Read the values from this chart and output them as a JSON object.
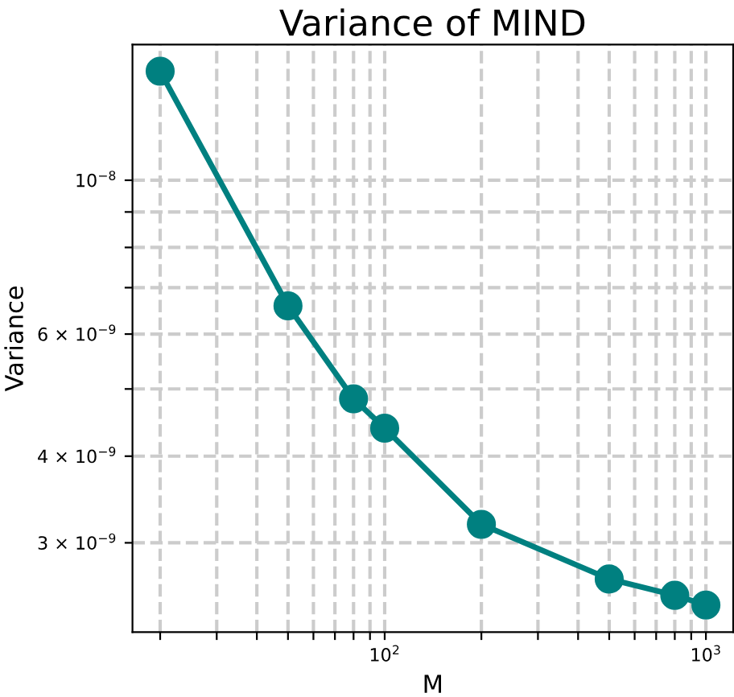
{
  "chart_data": {
    "type": "line",
    "title": "Variance of MIND",
    "xlabel": "M",
    "ylabel": "Variance",
    "log": "xy",
    "grid": true,
    "marker": "circle",
    "line_style": "solid",
    "x": [
      20,
      50,
      80,
      100,
      200,
      500,
      800,
      1000
    ],
    "series": [
      {
        "color": "#008080",
        "values": [
          1.436e-08,
          6.59e-09,
          4.84e-09,
          4.39e-09,
          3.19e-09,
          2.66e-09,
          2.52e-09,
          2.44e-09
        ]
      }
    ],
    "xlim": [
      16.4,
      1216
    ],
    "ylim": [
      2.23e-09,
      1.569e-08
    ],
    "xticks": [
      {
        "value": 20,
        "label": null
      },
      {
        "value": 30,
        "label": null
      },
      {
        "value": 40,
        "label": null
      },
      {
        "value": 50,
        "label": null
      },
      {
        "value": 60,
        "label": null
      },
      {
        "value": 70,
        "label": null
      },
      {
        "value": 80,
        "label": null
      },
      {
        "value": 90,
        "label": null
      },
      {
        "value": 100,
        "label": "10$^{2}$"
      },
      {
        "value": 200,
        "label": null
      },
      {
        "value": 300,
        "label": null
      },
      {
        "value": 400,
        "label": null
      },
      {
        "value": 500,
        "label": null
      },
      {
        "value": 600,
        "label": null
      },
      {
        "value": 700,
        "label": null
      },
      {
        "value": 800,
        "label": null
      },
      {
        "value": 900,
        "label": null
      },
      {
        "value": 1000,
        "label": "10$^{3}$"
      }
    ],
    "yticks": [
      {
        "value": 3e-09,
        "label": "3 × 10$^{−9}$"
      },
      {
        "value": 4e-09,
        "label": "4 × 10$^{−9}$"
      },
      {
        "value": 5e-09,
        "label": null
      },
      {
        "value": 6e-09,
        "label": "6 × 10$^{−9}$"
      },
      {
        "value": 7e-09,
        "label": null
      },
      {
        "value": 8e-09,
        "label": null
      },
      {
        "value": 9e-09,
        "label": null
      },
      {
        "value": 1e-08,
        "label": "10$^{−8}$"
      }
    ]
  }
}
